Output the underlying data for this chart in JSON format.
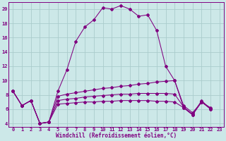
{
  "xlabel": "Windchill (Refroidissement éolien,°C)",
  "background_color": "#cce8e8",
  "grid_color": "#aacccc",
  "line_color": "#800080",
  "ylim": [
    3.5,
    21.0
  ],
  "xlim": [
    -0.5,
    23.5
  ],
  "yticks": [
    4,
    6,
    8,
    10,
    12,
    14,
    16,
    18,
    20
  ],
  "xticks": [
    0,
    1,
    2,
    3,
    4,
    5,
    6,
    7,
    8,
    9,
    10,
    11,
    12,
    13,
    14,
    15,
    16,
    17,
    18,
    19,
    20,
    21,
    22,
    23
  ],
  "series1": [
    8.5,
    6.5,
    7.2,
    4.0,
    4.2,
    8.5,
    11.5,
    15.5,
    17.5,
    18.5,
    20.2,
    20.0,
    20.5,
    20.0,
    19.0,
    19.2,
    17.0,
    12.0,
    10.0,
    6.2,
    5.2,
    7.2,
    6.0
  ],
  "series2": [
    8.5,
    6.5,
    7.2,
    4.0,
    4.2,
    7.8,
    8.1,
    8.3,
    8.5,
    8.7,
    8.9,
    9.0,
    9.2,
    9.3,
    9.5,
    9.6,
    9.8,
    9.9,
    10.0,
    6.5,
    5.5,
    7.0,
    6.2
  ],
  "series3": [
    8.5,
    6.5,
    7.2,
    4.0,
    4.2,
    7.2,
    7.4,
    7.5,
    7.7,
    7.8,
    7.9,
    8.0,
    8.1,
    8.1,
    8.2,
    8.2,
    8.2,
    8.2,
    8.1,
    6.3,
    5.3,
    7.0,
    6.1
  ],
  "series4": [
    8.5,
    6.5,
    7.2,
    4.0,
    4.2,
    6.7,
    6.8,
    6.9,
    7.0,
    7.0,
    7.1,
    7.1,
    7.2,
    7.2,
    7.2,
    7.2,
    7.1,
    7.1,
    7.0,
    6.2,
    5.2,
    7.0,
    6.0
  ]
}
